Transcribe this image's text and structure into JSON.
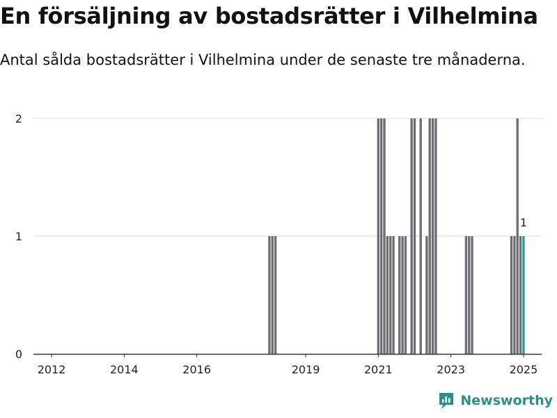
{
  "header": {
    "title": "En försäljning av bostadsrätter i Vilhelmina",
    "subtitle": "Antal sålda bostadsrätter i Vilhelmina under de senaste tre månaderna."
  },
  "brand": {
    "name": "Newsworthy"
  },
  "colors": {
    "bar": "#6d6d72",
    "highlight": "#2a9d8f",
    "grid": "#dddddd",
    "axis": "#333333",
    "text": "#222222"
  },
  "chart_data": {
    "type": "bar",
    "title": "",
    "xlabel": "",
    "ylabel": "",
    "ylim": [
      0,
      2
    ],
    "yticks": [
      0,
      1,
      2
    ],
    "xlim": [
      "2011-07",
      "2025-07"
    ],
    "xticks": [
      "2012",
      "2014",
      "2016",
      "2019",
      "2021",
      "2023",
      "2025"
    ],
    "grid": true,
    "series": [
      {
        "months": [
          "2018-01",
          "2018-02",
          "2018-03",
          "2021-01",
          "2021-02",
          "2021-03",
          "2021-04",
          "2021-05",
          "2021-06",
          "2021-07",
          "2021-08",
          "2021-09",
          "2021-10",
          "2021-11",
          "2021-12",
          "2022-01",
          "2022-02",
          "2022-03",
          "2022-04",
          "2022-05",
          "2022-06",
          "2022-07",
          "2022-08",
          "2023-06",
          "2023-07",
          "2023-08",
          "2024-09",
          "2024-10",
          "2024-11",
          "2024-12",
          "2025-01"
        ],
        "values": [
          1,
          1,
          1,
          2,
          2,
          2,
          1,
          1,
          1,
          0,
          1,
          1,
          1,
          0,
          2,
          2,
          0,
          2,
          0,
          1,
          2,
          2,
          2,
          1,
          1,
          1,
          1,
          1,
          2,
          1,
          1
        ]
      }
    ],
    "annotations": [
      {
        "x": "2025-01",
        "text": "1"
      }
    ],
    "highlight": "2025-01"
  }
}
